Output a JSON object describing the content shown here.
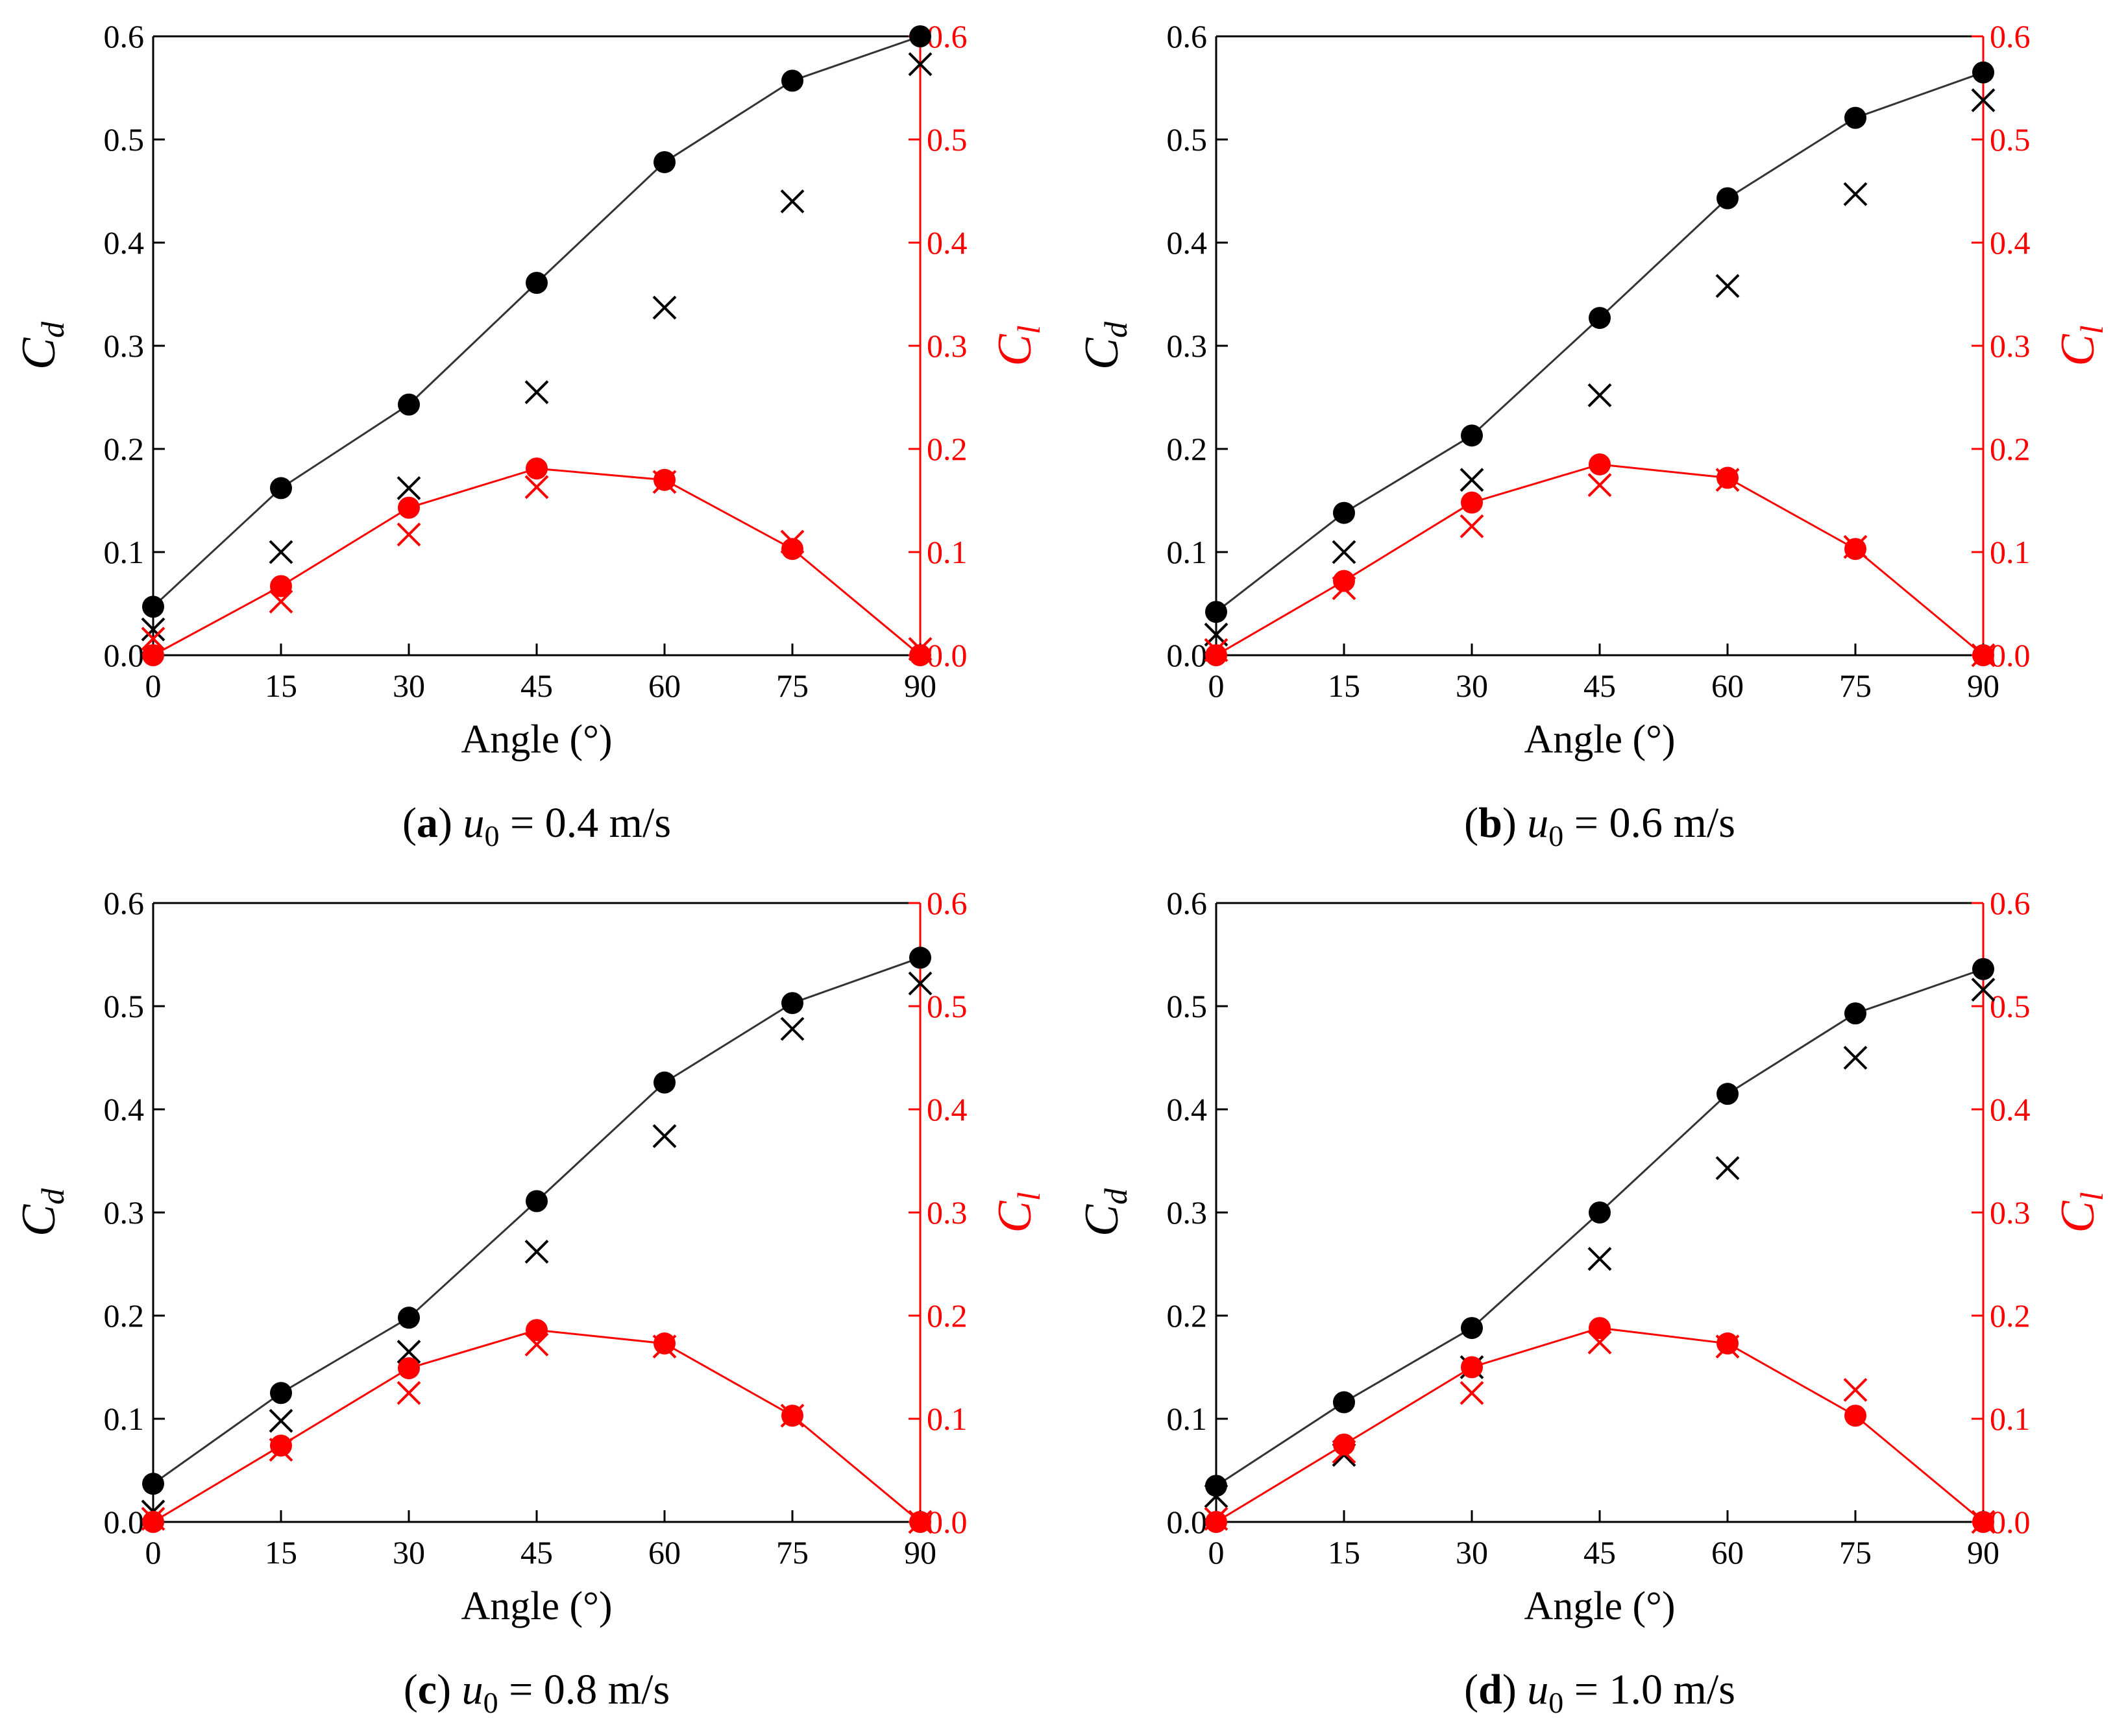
{
  "chart_data": [
    {
      "type": "scatter",
      "panel": "a",
      "caption": {
        "letter": "a",
        "variable": "u",
        "subscript": "0",
        "text": " = 0.4 m/s"
      },
      "xlabel": "Angle (°)",
      "ylabel_left": {
        "main": "C",
        "sub": "d"
      },
      "ylabel_right": {
        "main": "C",
        "sub": "l"
      },
      "xlim": [
        0,
        90
      ],
      "ylim": [
        0,
        0.6
      ],
      "xticks": [
        "0",
        "15",
        "30",
        "45",
        "60",
        "75",
        "90"
      ],
      "yticks": [
        "0.0",
        "0.1",
        "0.2",
        "0.3",
        "0.4",
        "0.5",
        "0.6"
      ],
      "x": [
        0,
        15,
        30,
        45,
        60,
        75,
        90
      ],
      "series": [
        {
          "name": "Cd line",
          "axis": "left",
          "color": "#000000",
          "marker": "circle",
          "line": true,
          "values": [
            0.047,
            0.162,
            0.243,
            0.361,
            0.478,
            0.557,
            0.6
          ]
        },
        {
          "name": "Cd cross",
          "axis": "left",
          "color": "#000000",
          "marker": "x",
          "line": false,
          "values": [
            0.025,
            0.1,
            0.162,
            0.255,
            0.337,
            0.44,
            0.573
          ]
        },
        {
          "name": "Cl line",
          "axis": "right",
          "color": "#ff0000",
          "marker": "circle",
          "line": true,
          "values": [
            0.0,
            0.067,
            0.143,
            0.181,
            0.17,
            0.103,
            0.0
          ]
        },
        {
          "name": "Cl cross",
          "axis": "right",
          "color": "#ff0000",
          "marker": "x",
          "line": false,
          "values": [
            0.016,
            0.052,
            0.117,
            0.163,
            0.168,
            0.11,
            0.006
          ]
        }
      ]
    },
    {
      "type": "scatter",
      "panel": "b",
      "caption": {
        "letter": "b",
        "variable": "u",
        "subscript": "0",
        "text": " = 0.6 m/s"
      },
      "xlabel": "Angle (°)",
      "ylabel_left": {
        "main": "C",
        "sub": "d"
      },
      "ylabel_right": {
        "main": "C",
        "sub": "l"
      },
      "xlim": [
        0,
        90
      ],
      "ylim": [
        0,
        0.6
      ],
      "xticks": [
        "0",
        "15",
        "30",
        "45",
        "60",
        "75",
        "90"
      ],
      "yticks": [
        "0.0",
        "0.1",
        "0.2",
        "0.3",
        "0.4",
        "0.5",
        "0.6"
      ],
      "x": [
        0,
        15,
        30,
        45,
        60,
        75,
        90
      ],
      "series": [
        {
          "name": "Cd line",
          "axis": "left",
          "color": "#000000",
          "marker": "circle",
          "line": true,
          "values": [
            0.042,
            0.138,
            0.213,
            0.327,
            0.443,
            0.521,
            0.565
          ]
        },
        {
          "name": "Cd cross",
          "axis": "left",
          "color": "#000000",
          "marker": "x",
          "line": false,
          "values": [
            0.02,
            0.1,
            0.17,
            0.252,
            0.358,
            0.447,
            0.538
          ]
        },
        {
          "name": "Cl line",
          "axis": "right",
          "color": "#ff0000",
          "marker": "circle",
          "line": true,
          "values": [
            0.0,
            0.072,
            0.148,
            0.185,
            0.172,
            0.103,
            0.0
          ]
        },
        {
          "name": "Cl cross",
          "axis": "right",
          "color": "#ff0000",
          "marker": "x",
          "line": false,
          "values": [
            0.005,
            0.065,
            0.125,
            0.165,
            0.17,
            0.105,
            0.0
          ]
        }
      ]
    },
    {
      "type": "scatter",
      "panel": "c",
      "caption": {
        "letter": "c",
        "variable": "u",
        "subscript": "0",
        "text": " = 0.8 m/s"
      },
      "xlabel": "Angle (°)",
      "ylabel_left": {
        "main": "C",
        "sub": "d"
      },
      "ylabel_right": {
        "main": "C",
        "sub": "l"
      },
      "xlim": [
        0,
        90
      ],
      "ylim": [
        0,
        0.6
      ],
      "xticks": [
        "0",
        "15",
        "30",
        "45",
        "60",
        "75",
        "90"
      ],
      "yticks": [
        "0.0",
        "0.1",
        "0.2",
        "0.3",
        "0.4",
        "0.5",
        "0.6"
      ],
      "x": [
        0,
        15,
        30,
        45,
        60,
        75,
        90
      ],
      "series": [
        {
          "name": "Cd line",
          "axis": "left",
          "color": "#000000",
          "marker": "circle",
          "line": true,
          "values": [
            0.037,
            0.125,
            0.198,
            0.311,
            0.426,
            0.503,
            0.547
          ]
        },
        {
          "name": "Cd cross",
          "axis": "left",
          "color": "#000000",
          "marker": "x",
          "line": false,
          "values": [
            0.01,
            0.098,
            0.165,
            0.262,
            0.374,
            0.478,
            0.522
          ]
        },
        {
          "name": "Cl line",
          "axis": "right",
          "color": "#ff0000",
          "marker": "circle",
          "line": true,
          "values": [
            0.0,
            0.074,
            0.149,
            0.186,
            0.173,
            0.103,
            0.0
          ]
        },
        {
          "name": "Cl cross",
          "axis": "right",
          "color": "#ff0000",
          "marker": "x",
          "line": false,
          "values": [
            0.003,
            0.07,
            0.125,
            0.172,
            0.17,
            0.103,
            0.0
          ]
        }
      ]
    },
    {
      "type": "scatter",
      "panel": "d",
      "caption": {
        "letter": "d",
        "variable": "u",
        "subscript": "0",
        "text": " = 1.0 m/s"
      },
      "xlabel": "Angle (°)",
      "ylabel_left": {
        "main": "C",
        "sub": "d"
      },
      "ylabel_right": {
        "main": "C",
        "sub": "l"
      },
      "xlim": [
        0,
        90
      ],
      "ylim": [
        0,
        0.6
      ],
      "xticks": [
        "0",
        "15",
        "30",
        "45",
        "60",
        "75",
        "90"
      ],
      "yticks": [
        "0.0",
        "0.1",
        "0.2",
        "0.3",
        "0.4",
        "0.5",
        "0.6"
      ],
      "x": [
        0,
        15,
        30,
        45,
        60,
        75,
        90
      ],
      "series": [
        {
          "name": "Cd line",
          "axis": "left",
          "color": "#000000",
          "marker": "circle",
          "line": true,
          "values": [
            0.035,
            0.116,
            0.188,
            0.3,
            0.415,
            0.493,
            0.536
          ]
        },
        {
          "name": "Cd cross",
          "axis": "left",
          "color": "#000000",
          "marker": "x",
          "line": false,
          "values": [
            0.025,
            0.065,
            0.15,
            0.255,
            0.343,
            0.45,
            0.516
          ]
        },
        {
          "name": "Cl line",
          "axis": "right",
          "color": "#ff0000",
          "marker": "circle",
          "line": true,
          "values": [
            0.0,
            0.075,
            0.15,
            0.188,
            0.173,
            0.103,
            0.0
          ]
        },
        {
          "name": "Cl cross",
          "axis": "right",
          "color": "#ff0000",
          "marker": "x",
          "line": false,
          "values": [
            0.003,
            0.068,
            0.125,
            0.174,
            0.17,
            0.128,
            0.0
          ]
        }
      ]
    }
  ]
}
